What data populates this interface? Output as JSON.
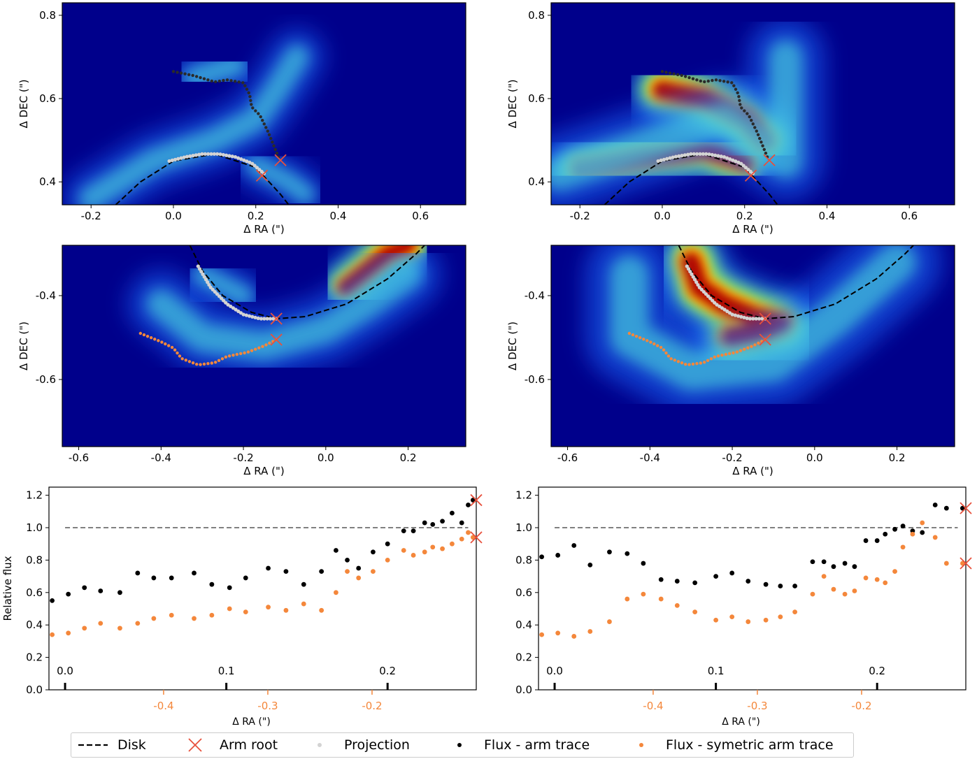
{
  "colors": {
    "background_map": "#00008b",
    "disk": "#000000",
    "arm_root": "#e8503c",
    "projection": "#d3d3d3",
    "arm_trace": "#000000",
    "sym_trace": "#f4873b",
    "reference_line": "#808080",
    "secondary_axis": "#f4873b"
  },
  "legend": {
    "disk": "Disk",
    "arm_root": "Arm root",
    "projection": "Projection",
    "arm_trace": "Flux - arm trace",
    "sym_trace": "Flux - symetric arm trace"
  },
  "chart_data": [
    {
      "id": "top-left",
      "type": "heatmap",
      "xlabel": "Δ RA (\")",
      "ylabel": "Δ DEC (\")",
      "xlim": [
        -0.27,
        0.71
      ],
      "ylim": [
        0.345,
        0.83
      ],
      "xticks": [
        -0.2,
        0.0,
        0.2,
        0.4,
        0.6
      ],
      "xticklabels": [
        "-0.2",
        "0.0",
        "0.2",
        "0.4",
        "0.6"
      ],
      "yticks": [
        0.4,
        0.6,
        0.8
      ],
      "yticklabels": [
        "0.4",
        "0.6",
        "0.8"
      ],
      "disk_curve": [
        [
          -0.14,
          0.345
        ],
        [
          -0.08,
          0.4
        ],
        [
          0.0,
          0.45
        ],
        [
          0.1,
          0.467
        ],
        [
          0.2,
          0.435
        ],
        [
          0.26,
          0.37
        ],
        [
          0.28,
          0.345
        ]
      ],
      "arm_trace": [
        [
          0.0,
          0.665
        ],
        [
          0.05,
          0.655
        ],
        [
          0.1,
          0.64
        ],
        [
          0.13,
          0.645
        ],
        [
          0.17,
          0.638
        ],
        [
          0.185,
          0.61
        ],
        [
          0.19,
          0.58
        ],
        [
          0.21,
          0.56
        ],
        [
          0.23,
          0.52
        ],
        [
          0.255,
          0.46
        ]
      ],
      "projection": [
        [
          -0.01,
          0.45
        ],
        [
          0.03,
          0.46
        ],
        [
          0.07,
          0.467
        ],
        [
          0.11,
          0.467
        ],
        [
          0.15,
          0.46
        ],
        [
          0.19,
          0.445
        ],
        [
          0.22,
          0.42
        ]
      ],
      "arm_roots": [
        [
          0.215,
          0.415
        ],
        [
          0.26,
          0.452
        ]
      ]
    },
    {
      "id": "top-right",
      "type": "heatmap",
      "xlabel": "Δ RA (\")",
      "ylabel": "Δ DEC (\")",
      "xlim": [
        -0.27,
        0.71
      ],
      "ylim": [
        0.345,
        0.83
      ],
      "xticks": [
        -0.2,
        0.0,
        0.2,
        0.4,
        0.6
      ],
      "xticklabels": [
        "-0.2",
        "0.0",
        "0.2",
        "0.4",
        "0.6"
      ],
      "yticks": [
        0.4,
        0.6,
        0.8
      ],
      "yticklabels": [
        "0.4",
        "0.6",
        "0.8"
      ],
      "disk_curve": [
        [
          -0.14,
          0.345
        ],
        [
          -0.08,
          0.4
        ],
        [
          0.0,
          0.45
        ],
        [
          0.1,
          0.467
        ],
        [
          0.2,
          0.435
        ],
        [
          0.26,
          0.37
        ],
        [
          0.28,
          0.345
        ]
      ],
      "arm_trace": [
        [
          0.0,
          0.665
        ],
        [
          0.05,
          0.655
        ],
        [
          0.1,
          0.64
        ],
        [
          0.13,
          0.645
        ],
        [
          0.17,
          0.638
        ],
        [
          0.185,
          0.61
        ],
        [
          0.19,
          0.58
        ],
        [
          0.21,
          0.56
        ],
        [
          0.23,
          0.52
        ],
        [
          0.255,
          0.46
        ]
      ],
      "projection": [
        [
          -0.01,
          0.45
        ],
        [
          0.03,
          0.46
        ],
        [
          0.07,
          0.467
        ],
        [
          0.11,
          0.467
        ],
        [
          0.15,
          0.46
        ],
        [
          0.19,
          0.445
        ],
        [
          0.22,
          0.42
        ]
      ],
      "arm_roots": [
        [
          0.215,
          0.415
        ],
        [
          0.26,
          0.452
        ]
      ]
    },
    {
      "id": "middle-left",
      "type": "heatmap",
      "xlabel": "Δ RA (\")",
      "ylabel": "Δ DEC (\")",
      "xlim": [
        -0.64,
        0.34
      ],
      "ylim": [
        -0.76,
        -0.28
      ],
      "xticks": [
        -0.6,
        -0.4,
        -0.2,
        0.0,
        0.2
      ],
      "xticklabels": [
        "-0.6",
        "-0.4",
        "-0.2",
        "0.0",
        "0.2"
      ],
      "yticks": [
        -0.6,
        -0.4
      ],
      "yticklabels": [
        "-0.6",
        "-0.4"
      ],
      "disk_curve": [
        [
          -0.33,
          -0.28
        ],
        [
          -0.3,
          -0.34
        ],
        [
          -0.25,
          -0.4
        ],
        [
          -0.18,
          -0.44
        ],
        [
          -0.12,
          -0.455
        ],
        [
          -0.05,
          -0.45
        ],
        [
          0.05,
          -0.42
        ],
        [
          0.15,
          -0.36
        ],
        [
          0.22,
          -0.3
        ],
        [
          0.24,
          -0.28
        ]
      ],
      "arm_trace": [
        [
          -0.45,
          -0.49
        ],
        [
          -0.4,
          -0.51
        ],
        [
          -0.37,
          -0.525
        ],
        [
          -0.35,
          -0.55
        ],
        [
          -0.31,
          -0.565
        ],
        [
          -0.27,
          -0.56
        ],
        [
          -0.24,
          -0.545
        ],
        [
          -0.19,
          -0.535
        ],
        [
          -0.15,
          -0.52
        ],
        [
          -0.12,
          -0.505
        ]
      ],
      "projection": [
        [
          -0.31,
          -0.33
        ],
        [
          -0.28,
          -0.38
        ],
        [
          -0.24,
          -0.42
        ],
        [
          -0.2,
          -0.445
        ],
        [
          -0.16,
          -0.455
        ],
        [
          -0.12,
          -0.455
        ]
      ],
      "arm_roots": [
        [
          -0.12,
          -0.455
        ],
        [
          -0.12,
          -0.505
        ]
      ]
    },
    {
      "id": "middle-right",
      "type": "heatmap",
      "xlabel": "Δ RA (\")",
      "ylabel": "Δ DEC (\")",
      "xlim": [
        -0.64,
        0.34
      ],
      "ylim": [
        -0.76,
        -0.28
      ],
      "xticks": [
        -0.6,
        -0.4,
        -0.2,
        0.0,
        0.2
      ],
      "xticklabels": [
        "-0.6",
        "-0.4",
        "-0.2",
        "0.0",
        "0.2"
      ],
      "yticks": [
        -0.6,
        -0.4
      ],
      "yticklabels": [
        "-0.6",
        "-0.4"
      ],
      "disk_curve": [
        [
          -0.33,
          -0.28
        ],
        [
          -0.3,
          -0.34
        ],
        [
          -0.25,
          -0.4
        ],
        [
          -0.18,
          -0.44
        ],
        [
          -0.12,
          -0.455
        ],
        [
          -0.05,
          -0.45
        ],
        [
          0.05,
          -0.42
        ],
        [
          0.15,
          -0.36
        ],
        [
          0.22,
          -0.3
        ],
        [
          0.24,
          -0.28
        ]
      ],
      "arm_trace": [
        [
          -0.45,
          -0.49
        ],
        [
          -0.4,
          -0.51
        ],
        [
          -0.37,
          -0.525
        ],
        [
          -0.35,
          -0.55
        ],
        [
          -0.31,
          -0.565
        ],
        [
          -0.27,
          -0.56
        ],
        [
          -0.24,
          -0.545
        ],
        [
          -0.19,
          -0.535
        ],
        [
          -0.15,
          -0.52
        ],
        [
          -0.12,
          -0.505
        ]
      ],
      "projection": [
        [
          -0.31,
          -0.33
        ],
        [
          -0.28,
          -0.38
        ],
        [
          -0.24,
          -0.42
        ],
        [
          -0.2,
          -0.445
        ],
        [
          -0.16,
          -0.455
        ],
        [
          -0.12,
          -0.455
        ]
      ],
      "arm_roots": [
        [
          -0.12,
          -0.455
        ],
        [
          -0.12,
          -0.505
        ]
      ]
    },
    {
      "id": "bottom-left",
      "type": "scatter",
      "ylabel": "Relative flux",
      "xlabel": "Δ RA (\")",
      "ylim": [
        0.0,
        1.25
      ],
      "yticks": [
        0.0,
        0.2,
        0.4,
        0.6,
        0.8,
        1.0,
        1.2
      ],
      "yticklabels": [
        "0.0",
        "0.2",
        "0.4",
        "0.6",
        "0.8",
        "1.0",
        "1.2"
      ],
      "top_axis": {
        "range": [
          -0.01,
          0.255
        ],
        "ticks": [
          0.0,
          0.1,
          0.2
        ],
        "ticklabels": [
          "0.0",
          "0.1",
          "0.2"
        ]
      },
      "bottom_axis": {
        "range": [
          -0.51,
          -0.1
        ],
        "ticks": [
          -0.4,
          -0.3,
          -0.2
        ],
        "ticklabels": [
          "-0.4",
          "-0.3",
          "-0.2"
        ]
      },
      "reference_line": {
        "y": 1.0,
        "x_range": [
          0.0,
          0.25
        ]
      },
      "series": [
        {
          "name": "Flux - arm trace",
          "x": [
            -0.008,
            0.002,
            0.012,
            0.022,
            0.034,
            0.045,
            0.055,
            0.066,
            0.08,
            0.091,
            0.102,
            0.112,
            0.126,
            0.137,
            0.148,
            0.159,
            0.168,
            0.175,
            0.182,
            0.191,
            0.2,
            0.21,
            0.216,
            0.223,
            0.228,
            0.234,
            0.24,
            0.246,
            0.25,
            0.253
          ],
          "values": [
            0.55,
            0.59,
            0.63,
            0.61,
            0.6,
            0.72,
            0.69,
            0.69,
            0.72,
            0.65,
            0.63,
            0.69,
            0.75,
            0.73,
            0.65,
            0.73,
            0.86,
            0.8,
            0.75,
            0.85,
            0.9,
            0.98,
            0.98,
            1.03,
            1.02,
            1.04,
            1.09,
            1.03,
            1.14,
            1.17
          ]
        },
        {
          "name": "Flux - symetric arm trace",
          "x": [
            -0.008,
            0.002,
            0.012,
            0.022,
            0.034,
            0.045,
            0.055,
            0.066,
            0.08,
            0.091,
            0.102,
            0.112,
            0.126,
            0.137,
            0.148,
            0.159,
            0.168,
            0.175,
            0.182,
            0.191,
            0.2,
            0.21,
            0.216,
            0.223,
            0.228,
            0.234,
            0.24,
            0.246,
            0.25,
            0.253
          ],
          "values": [
            0.34,
            0.35,
            0.38,
            0.41,
            0.38,
            0.41,
            0.44,
            0.46,
            0.44,
            0.46,
            0.5,
            0.48,
            0.51,
            0.49,
            0.53,
            0.49,
            0.6,
            0.73,
            0.69,
            0.73,
            0.8,
            0.86,
            0.83,
            0.85,
            0.88,
            0.87,
            0.9,
            0.93,
            0.97,
            0.94
          ]
        }
      ],
      "arm_roots": [
        [
          0.255,
          1.17
        ],
        [
          0.255,
          0.94
        ]
      ]
    },
    {
      "id": "bottom-right",
      "type": "scatter",
      "ylabel": "",
      "xlabel": "Δ RA (\")",
      "ylim": [
        0.0,
        1.25
      ],
      "yticks": [
        0.0,
        0.2,
        0.4,
        0.6,
        0.8,
        1.0,
        1.2
      ],
      "yticklabels": [
        "0.0",
        "0.2",
        "0.4",
        "0.6",
        "0.8",
        "1.0",
        "1.2"
      ],
      "top_axis": {
        "range": [
          -0.01,
          0.255
        ],
        "ticks": [
          0.0,
          0.1,
          0.2
        ],
        "ticklabels": [
          "0.0",
          "0.1",
          "0.2"
        ]
      },
      "bottom_axis": {
        "range": [
          -0.51,
          -0.1
        ],
        "ticks": [
          -0.4,
          -0.3,
          -0.2
        ],
        "ticklabels": [
          "-0.4",
          "-0.3",
          "-0.2"
        ]
      },
      "reference_line": {
        "y": 1.0,
        "x_range": [
          0.0,
          0.25
        ]
      },
      "series": [
        {
          "name": "Flux - arm trace",
          "x": [
            -0.008,
            0.002,
            0.012,
            0.022,
            0.034,
            0.045,
            0.055,
            0.066,
            0.076,
            0.087,
            0.1,
            0.11,
            0.12,
            0.131,
            0.14,
            0.149,
            0.16,
            0.167,
            0.173,
            0.18,
            0.186,
            0.193,
            0.2,
            0.205,
            0.211,
            0.216,
            0.222,
            0.228,
            0.236,
            0.243,
            0.253
          ],
          "values": [
            0.82,
            0.83,
            0.89,
            0.77,
            0.85,
            0.84,
            0.78,
            0.68,
            0.67,
            0.66,
            0.7,
            0.72,
            0.67,
            0.65,
            0.64,
            0.64,
            0.79,
            0.79,
            0.76,
            0.78,
            0.76,
            0.92,
            0.92,
            0.96,
            0.99,
            1.01,
            0.98,
            0.97,
            1.14,
            1.12,
            1.12
          ]
        },
        {
          "name": "Flux - symetric arm trace",
          "x": [
            -0.008,
            0.002,
            0.012,
            0.022,
            0.034,
            0.045,
            0.055,
            0.066,
            0.076,
            0.087,
            0.1,
            0.11,
            0.12,
            0.131,
            0.14,
            0.149,
            0.16,
            0.167,
            0.173,
            0.18,
            0.186,
            0.193,
            0.2,
            0.205,
            0.211,
            0.216,
            0.222,
            0.228,
            0.236,
            0.243,
            0.253
          ],
          "values": [
            0.34,
            0.35,
            0.33,
            0.36,
            0.42,
            0.56,
            0.59,
            0.56,
            0.52,
            0.48,
            0.43,
            0.45,
            0.42,
            0.43,
            0.45,
            0.48,
            0.59,
            0.7,
            0.62,
            0.59,
            0.61,
            0.69,
            0.68,
            0.66,
            0.73,
            0.88,
            0.96,
            1.03,
            0.94,
            0.78,
            0.78
          ]
        }
      ],
      "arm_roots": [
        [
          0.255,
          1.12
        ],
        [
          0.255,
          0.78
        ]
      ]
    }
  ]
}
